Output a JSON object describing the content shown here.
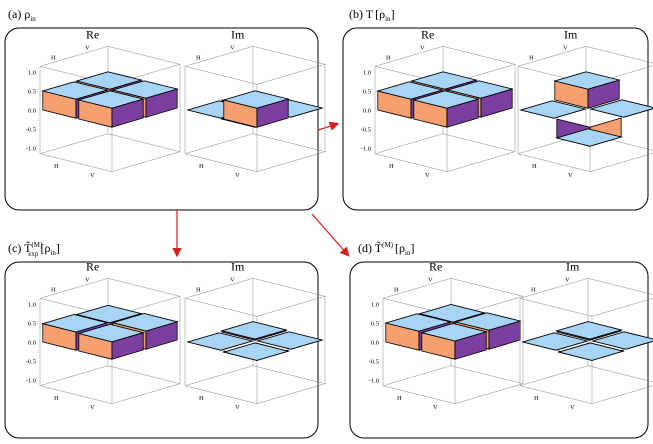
{
  "panels": [
    {
      "id": "a",
      "caption": "(a) ρ",
      "caption_sub": "in",
      "labels": [
        "Re",
        "Im"
      ],
      "re": [
        [
          0.5,
          0.5
        ],
        [
          0.5,
          0.5
        ]
      ],
      "im": [
        [
          0,
          -0.5
        ],
        [
          0.5,
          0
        ]
      ]
    },
    {
      "id": "b",
      "caption": "(b) T",
      "caption_bracket": "ρ",
      "caption_sub": "in",
      "labels": [
        "Re",
        "Im"
      ],
      "re": [
        [
          0.5,
          0.5
        ],
        [
          0.5,
          0.5
        ]
      ],
      "im": [
        [
          0,
          0.5
        ],
        [
          -0.5,
          0
        ]
      ]
    },
    {
      "id": "c",
      "caption": "(c) T̃",
      "caption_sup": "(M)",
      "caption_sub2": "exp",
      "caption_bracket": "ρ",
      "caption_sub": "in",
      "labels": [
        "Re",
        "Im"
      ],
      "re": [
        [
          0.48,
          0.46
        ],
        [
          0.46,
          0.48
        ]
      ],
      "im": [
        [
          0,
          0.03
        ],
        [
          -0.03,
          0
        ]
      ]
    },
    {
      "id": "d",
      "caption": "(d) T̃",
      "caption_sup": "(M)",
      "caption_bracket": "ρ",
      "caption_sub": "in",
      "labels": [
        "Re",
        "Im"
      ],
      "re": [
        [
          0.5,
          0.48
        ],
        [
          0.48,
          0.5
        ]
      ],
      "im": [
        [
          0,
          0.03
        ],
        [
          -0.03,
          0
        ]
      ]
    }
  ],
  "axis": {
    "ticks": [
      "1.0",
      "0.5",
      "0.0",
      "-0.5",
      "-1.0"
    ],
    "h": "H",
    "v": "V"
  },
  "colors": {
    "top": "#a8d4f5",
    "positive_side": "#f5a06e",
    "negative_side": "#7b3fa0",
    "arrow": "#d42020"
  }
}
